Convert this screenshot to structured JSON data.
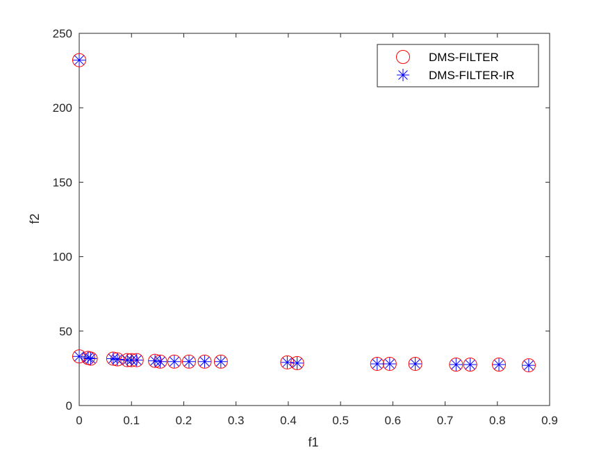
{
  "chart_data": {
    "type": "scatter",
    "xlabel": "f1",
    "ylabel": "f2",
    "xlim": [
      0,
      0.9
    ],
    "ylim": [
      0,
      250
    ],
    "xticks": [
      0,
      0.1,
      0.2,
      0.3,
      0.4,
      0.5,
      0.6,
      0.7,
      0.8,
      0.9
    ],
    "yticks": [
      0,
      50,
      100,
      150,
      200,
      250
    ],
    "grid": false,
    "legend_position": "top-right",
    "series": [
      {
        "name": "DMS-FILTER",
        "marker": "circle",
        "color": "#ff0000",
        "points": [
          [
            0.0,
            232
          ],
          [
            0.0,
            33
          ],
          [
            0.017,
            32
          ],
          [
            0.022,
            31.5
          ],
          [
            0.065,
            31.5
          ],
          [
            0.073,
            31
          ],
          [
            0.092,
            30.5
          ],
          [
            0.1,
            30.5
          ],
          [
            0.11,
            30.5
          ],
          [
            0.145,
            30
          ],
          [
            0.155,
            29.5
          ],
          [
            0.182,
            29.5
          ],
          [
            0.21,
            29.5
          ],
          [
            0.24,
            29.5
          ],
          [
            0.271,
            29.5
          ],
          [
            0.398,
            29
          ],
          [
            0.417,
            28.5
          ],
          [
            0.57,
            28
          ],
          [
            0.594,
            28
          ],
          [
            0.643,
            28
          ],
          [
            0.721,
            27.5
          ],
          [
            0.748,
            27.5
          ],
          [
            0.803,
            27.5
          ],
          [
            0.86,
            27
          ]
        ]
      },
      {
        "name": "DMS-FILTER-IR",
        "marker": "asterisk",
        "color": "#0000ff",
        "points": [
          [
            0.0,
            232
          ],
          [
            0.0,
            33
          ],
          [
            0.017,
            32
          ],
          [
            0.022,
            31.5
          ],
          [
            0.065,
            31.5
          ],
          [
            0.073,
            31
          ],
          [
            0.092,
            30.5
          ],
          [
            0.1,
            30.5
          ],
          [
            0.11,
            30.5
          ],
          [
            0.145,
            30
          ],
          [
            0.155,
            29.5
          ],
          [
            0.182,
            29.5
          ],
          [
            0.21,
            29.5
          ],
          [
            0.24,
            29.5
          ],
          [
            0.271,
            29.5
          ],
          [
            0.398,
            29
          ],
          [
            0.417,
            28.5
          ],
          [
            0.57,
            28
          ],
          [
            0.594,
            28
          ],
          [
            0.643,
            28
          ],
          [
            0.721,
            27.5
          ],
          [
            0.748,
            27.5
          ],
          [
            0.803,
            27.5
          ],
          [
            0.86,
            27
          ]
        ]
      }
    ]
  }
}
